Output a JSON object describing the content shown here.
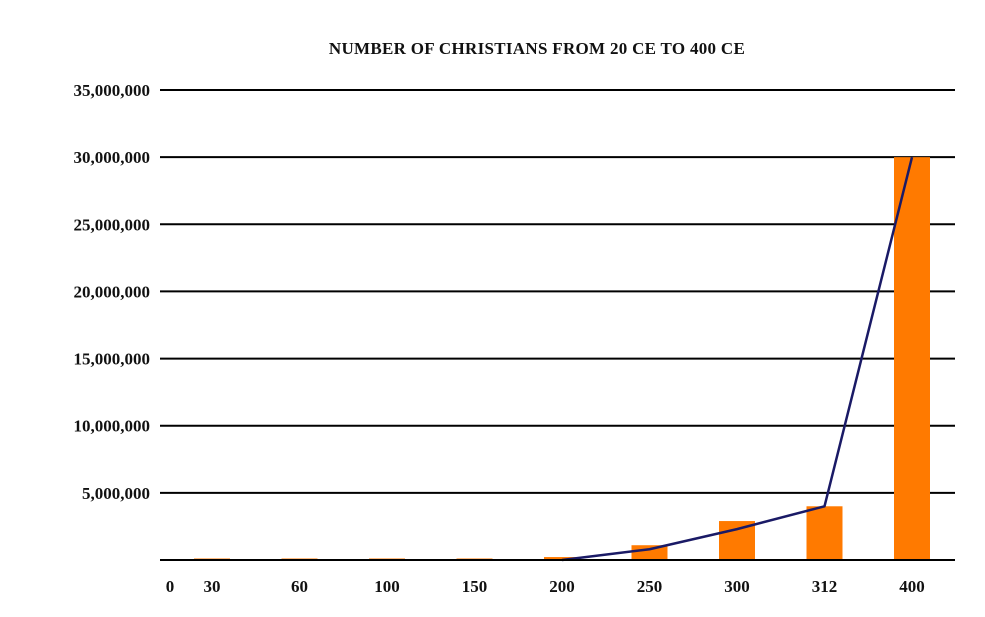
{
  "chart_data": {
    "type": "bar",
    "title": "NUMBER OF CHRISTIANS FROM 20 CE TO 400 CE",
    "xlabel": "",
    "ylabel": "",
    "x_origin_label": "0",
    "categories": [
      "30",
      "60",
      "100",
      "150",
      "200",
      "250",
      "300",
      "312",
      "400"
    ],
    "values": [
      1000,
      1000,
      7500,
      40000,
      220000,
      1100000,
      2900000,
      4000000,
      30000000
    ],
    "line_values": [
      null,
      null,
      null,
      null,
      0,
      800000,
      2300000,
      4000000,
      30000000
    ],
    "ylim": [
      0,
      35000000
    ],
    "yticks": [
      5000000,
      10000000,
      15000000,
      20000000,
      25000000,
      30000000,
      35000000
    ],
    "ytick_labels": [
      "5,000,000",
      "10,000,000",
      "15,000,000",
      "20,000,000",
      "25,000,000",
      "30,000,000",
      "35,000,000"
    ],
    "grid": true,
    "legend": "none",
    "colors": {
      "bar": "#ff7a00",
      "line": "#1a1a66",
      "grid": "#000000",
      "background": "#ffffff"
    }
  }
}
